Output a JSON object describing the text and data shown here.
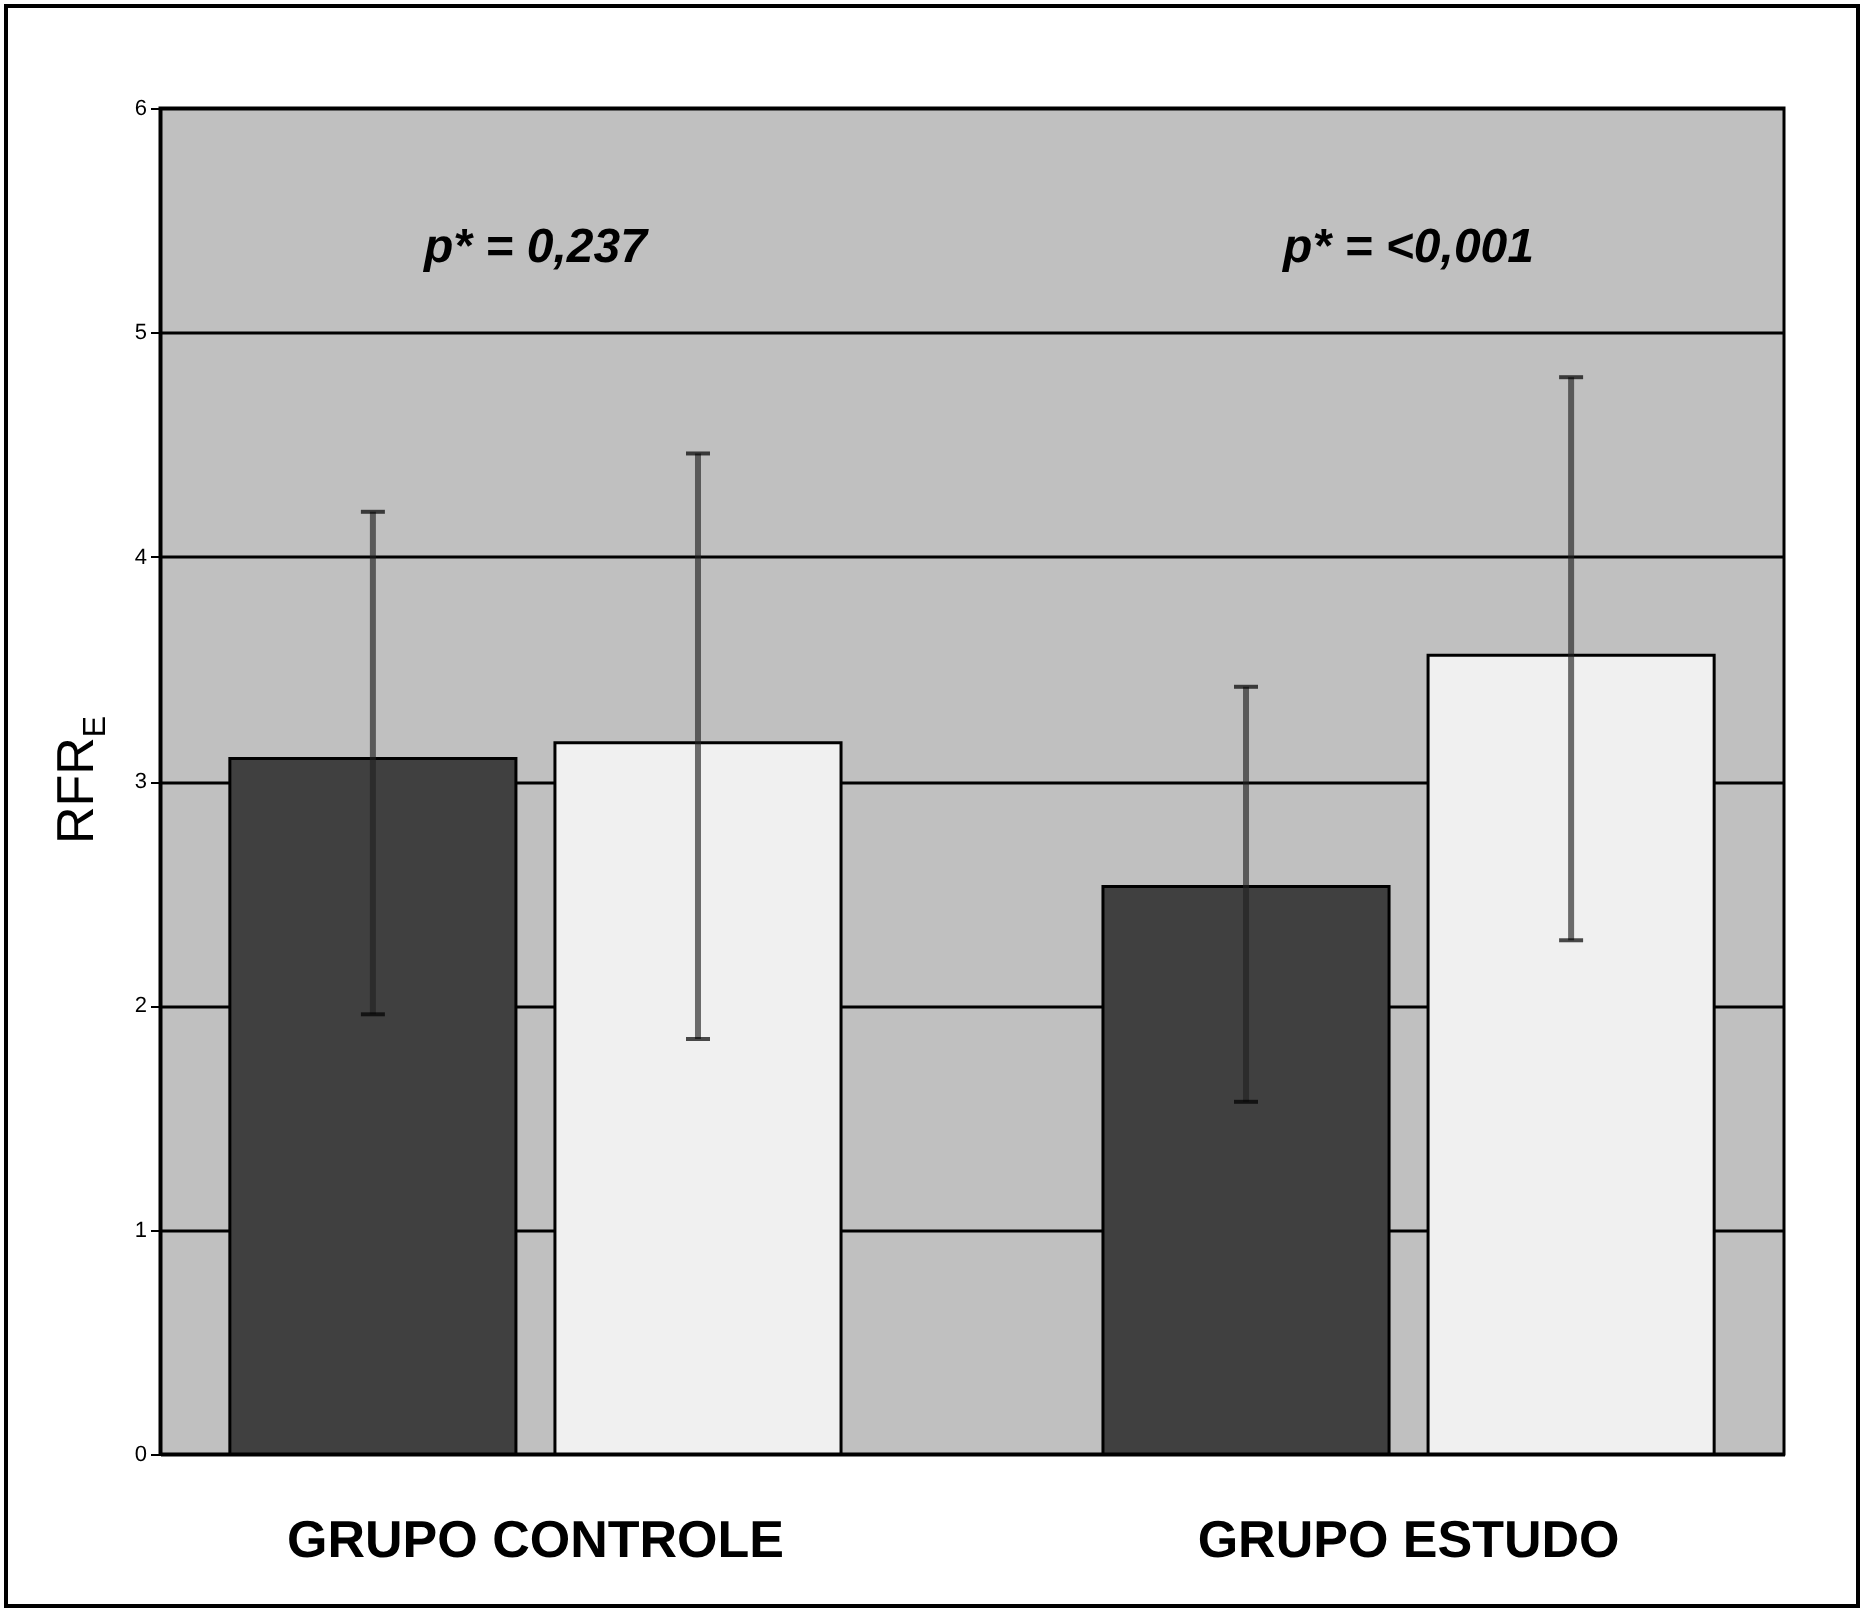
{
  "chart_data": {
    "type": "bar",
    "ylabel": "RFR$_{E}$",
    "categories": [
      "GRUPO CONTROLE",
      "GRUPO ESTUDO"
    ],
    "series": [
      {
        "color": "#404040",
        "values": [
          3.1,
          2.53
        ],
        "errors": [
          [
            1.96,
            4.2
          ],
          [
            1.57,
            3.42
          ]
        ]
      },
      {
        "color": "#f0f0f0",
        "values": [
          3.17,
          3.56
        ],
        "errors": [
          [
            1.85,
            4.46
          ],
          [
            2.29,
            4.8
          ]
        ]
      }
    ],
    "annotations": [
      "p* = 0,237",
      "p* = <0,001"
    ],
    "ylim": [
      0,
      6
    ],
    "yticks": [
      0,
      1,
      2,
      3,
      4,
      5,
      6
    ],
    "grid": "y",
    "legend": false
  }
}
